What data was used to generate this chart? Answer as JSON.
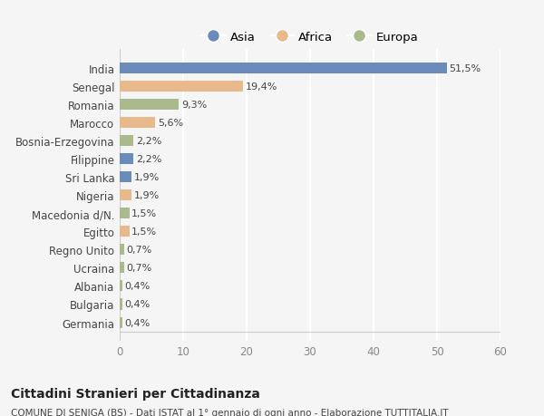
{
  "categories": [
    "India",
    "Senegal",
    "Romania",
    "Marocco",
    "Bosnia-Erzegovina",
    "Filippine",
    "Sri Lanka",
    "Nigeria",
    "Macedonia d/N.",
    "Egitto",
    "Regno Unito",
    "Ucraina",
    "Albania",
    "Bulgaria",
    "Germania"
  ],
  "values": [
    51.5,
    19.4,
    9.3,
    5.6,
    2.2,
    2.2,
    1.9,
    1.9,
    1.5,
    1.5,
    0.7,
    0.7,
    0.4,
    0.4,
    0.4
  ],
  "labels": [
    "51,5%",
    "19,4%",
    "9,3%",
    "5,6%",
    "2,2%",
    "2,2%",
    "1,9%",
    "1,9%",
    "1,5%",
    "1,5%",
    "0,7%",
    "0,7%",
    "0,4%",
    "0,4%",
    "0,4%"
  ],
  "continents": [
    "Asia",
    "Africa",
    "Europa",
    "Africa",
    "Europa",
    "Asia",
    "Asia",
    "Africa",
    "Europa",
    "Africa",
    "Europa",
    "Europa",
    "Europa",
    "Europa",
    "Europa"
  ],
  "colors": {
    "Asia": "#6b8cba",
    "Africa": "#e8b98a",
    "Europa": "#aaba8c"
  },
  "legend_order": [
    "Asia",
    "Africa",
    "Europa"
  ],
  "xlim": [
    0,
    60
  ],
  "xticks": [
    0,
    10,
    20,
    30,
    40,
    50,
    60
  ],
  "title1": "Cittadini Stranieri per Cittadinanza",
  "title2": "COMUNE DI SENIGA (BS) - Dati ISTAT al 1° gennaio di ogni anno - Elaborazione TUTTITALIA.IT",
  "bg_color": "#f5f5f5",
  "grid_color": "#ffffff",
  "bar_height": 0.6
}
